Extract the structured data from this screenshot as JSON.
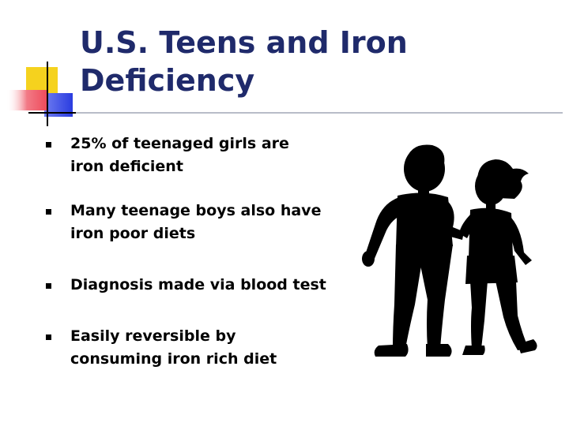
{
  "slide": {
    "title_lines": [
      "U.S. Teens and Iron",
      "Deficiency"
    ],
    "bullets": [
      {
        "lines": [
          "25% of teenaged girls are",
          "iron deficient"
        ]
      },
      {
        "lines": [
          "Many teenage boys also have",
          "iron poor diets"
        ]
      },
      {
        "lines": [
          "Diagnosis made via blood test"
        ]
      },
      {
        "lines": [
          "Easily reversible by",
          "consuming iron rich diet"
        ]
      }
    ]
  },
  "icons": {
    "decoration": "corner-squares-decoration",
    "bullet": "square-bullet-icon",
    "clipart": "teen-silhouettes-clipart"
  },
  "colors": {
    "title": "#1f2a6b",
    "accent_yellow": "#f5d21e",
    "accent_blue": "#2a3ce0",
    "accent_red": "#ee4a5a",
    "rule": "#b8bcc8"
  }
}
